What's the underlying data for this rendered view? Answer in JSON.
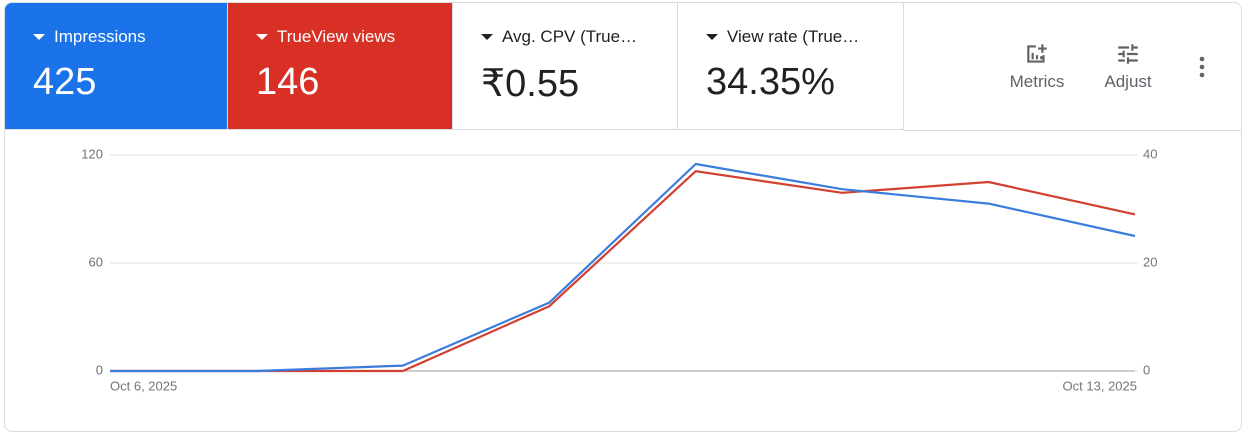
{
  "cards": [
    {
      "value": 425,
      "color": "#1a73e8"
    },
    {
      "value": 146,
      "color": "#d93025"
    },
    {
      "label": "Avg. CPV (True…",
      "value": "₹0.55"
    },
    {
      "label": "View rate (True…",
      "value": "34.35%"
    }
  ],
  "buttons": [
    {
      "label": "Metrics"
    },
    {
      "label": "Adjust"
    }
  ],
  "chart_data": {
    "type": "line",
    "categories": [
      "Oct 6, 2025",
      null,
      null,
      null,
      null,
      null,
      null,
      "Oct 13, 2025"
    ],
    "series": [
      {
        "name": "Impressions",
        "color": "#3b7ddd",
        "values": [
          0,
          0,
          3,
          38,
          115,
          101,
          93,
          75
        ]
      },
      {
        "name": "TrueView views",
        "color": "#d23f31",
        "axis": "y2",
        "values": [
          0,
          0,
          0,
          12,
          37,
          33,
          35,
          29
        ]
      }
    ],
    "ylim": [
      0,
      120
    ],
    "yticks": [
      0,
      60,
      120
    ],
    "y2lim": [
      0,
      40
    ],
    "y2ticks": [
      0,
      20,
      40
    ],
    "grid": true
  }
}
